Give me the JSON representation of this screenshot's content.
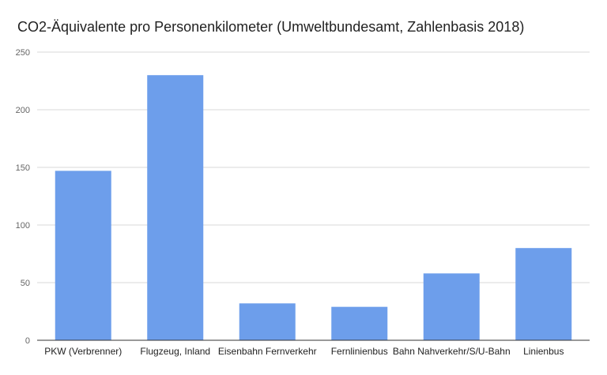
{
  "chart_data": {
    "type": "bar",
    "title": "CO2-Äquivalente pro Personenkilometer (Umweltbundesamt, Zahlenbasis 2018)",
    "xlabel": "",
    "ylabel": "",
    "categories": [
      "PKW (Verbrenner)",
      "Flugzeug, Inland",
      "Eisenbahn Fernverkehr",
      "Fernlinienbus",
      "Bahn Nahverkehr/S/U-Bahn",
      "Linienbus"
    ],
    "values": [
      147,
      230,
      32,
      29,
      58,
      80
    ],
    "ylim": [
      0,
      250
    ],
    "yticks": [
      0,
      50,
      100,
      150,
      200,
      250
    ],
    "grid": true,
    "legend": "none",
    "bar_color": "#6d9eeb"
  }
}
